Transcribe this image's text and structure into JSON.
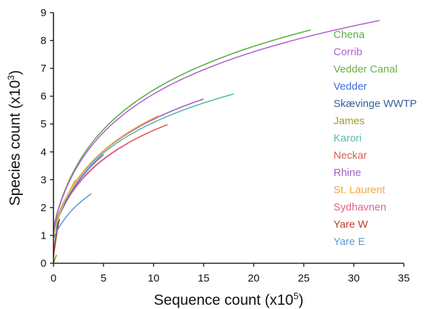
{
  "chart_data": {
    "type": "line",
    "title": "",
    "xlabel": "Sequence count (x10",
    "xlabel_sup": "5",
    "xlabel_end": ")",
    "ylabel": "Species count (x10",
    "ylabel_sup": "3",
    "ylabel_end": ")",
    "xlim": [
      0,
      35
    ],
    "ylim": [
      0,
      9
    ],
    "xticks": [
      "0",
      "5",
      "10",
      "15",
      "20",
      "25",
      "30",
      "35"
    ],
    "yticks": [
      "0",
      "1",
      "2",
      "3",
      "4",
      "5",
      "6",
      "7",
      "8",
      "9"
    ],
    "grid": false,
    "legend_position": "right",
    "series": [
      {
        "name": "Chena",
        "color": "#5aad45",
        "max_x": 25.7,
        "max_y": 8.38,
        "y0": 1.3
      },
      {
        "name": "Corrib",
        "color": "#b55fd2",
        "max_x": 32.6,
        "max_y": 8.72,
        "y0": 1.3
      },
      {
        "name": "Vedder Canal",
        "color": "#6ab04c",
        "max_x": 0.3,
        "max_y": 0.3,
        "y0": 0.0
      },
      {
        "name": "Vedder",
        "color": "#3f6ad8",
        "max_x": 0.5,
        "max_y": 1.7,
        "y0": 0.3
      },
      {
        "name": "Skævinge WWTP",
        "color": "#35609d",
        "max_x": 0.6,
        "max_y": 1.6,
        "y0": 0.3
      },
      {
        "name": "James",
        "color": "#a39a2a",
        "max_x": 0.4,
        "max_y": 1.2,
        "y0": 0.2
      },
      {
        "name": "Karori",
        "color": "#5bb6a8",
        "max_x": 18.0,
        "max_y": 6.08,
        "y0": 1.25
      },
      {
        "name": "Neckar",
        "color": "#e05a4f",
        "max_x": 11.4,
        "max_y": 4.98,
        "y0": 1.2
      },
      {
        "name": "Rhine",
        "color": "#a45ec0",
        "max_x": 15.0,
        "max_y": 5.9,
        "y0": 1.2
      },
      {
        "name": "St. Laurent",
        "color": "#f2a93b",
        "max_x": 10.5,
        "max_y": 5.3,
        "y0": 1.15
      },
      {
        "name": "Sydhavnen",
        "color": "#e0608f",
        "max_x": 7.4,
        "max_y": 4.3,
        "y0": 1.15
      },
      {
        "name": "Yare W",
        "color": "#c0392b",
        "max_x": 0.5,
        "max_y": 1.5,
        "y0": 0.3
      },
      {
        "name": "Yare E",
        "color": "#5b9bd5",
        "max_x": 3.8,
        "max_y": 2.5,
        "y0": 0.9
      }
    ],
    "extra_curves": [
      {
        "color": "#3f6ad8",
        "max_x": 5.0,
        "max_y": 3.9,
        "y0": 1.1
      },
      {
        "color": "#d8c23a",
        "max_x": 2.2,
        "max_y": 3.0,
        "y0": 1.0
      }
    ]
  }
}
